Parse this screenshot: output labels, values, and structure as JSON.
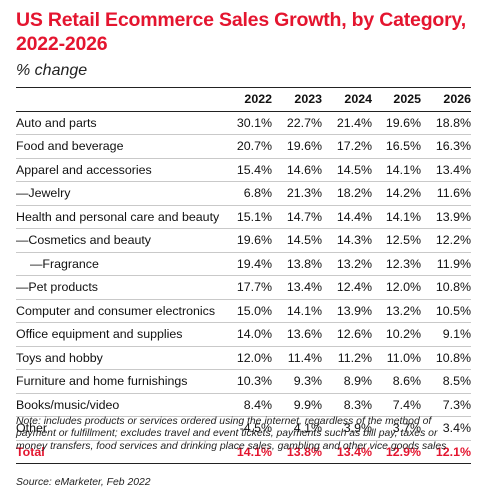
{
  "chart_data": {
    "type": "table",
    "title": "US Retail Ecommerce Sales Growth, by Category, 2022-2026",
    "subtitle": "% change",
    "columns": [
      "2022",
      "2023",
      "2024",
      "2025",
      "2026"
    ],
    "rows": [
      {
        "category": "Auto and parts",
        "values": [
          "30.1%",
          "22.7%",
          "21.4%",
          "19.6%",
          "18.8%"
        ]
      },
      {
        "category": "Food and beverage",
        "values": [
          "20.7%",
          "19.6%",
          "17.2%",
          "16.5%",
          "16.3%"
        ]
      },
      {
        "category": "Apparel and accessories",
        "values": [
          "15.4%",
          "14.6%",
          "14.5%",
          "14.1%",
          "13.4%"
        ]
      },
      {
        "category": "—Jewelry",
        "values": [
          "6.8%",
          "21.3%",
          "18.2%",
          "14.2%",
          "11.6%"
        ]
      },
      {
        "category": "Health and personal care and beauty",
        "values": [
          "15.1%",
          "14.7%",
          "14.4%",
          "14.1%",
          "13.9%"
        ]
      },
      {
        "category": "—Cosmetics and beauty",
        "values": [
          "19.6%",
          "14.5%",
          "14.3%",
          "12.5%",
          "12.2%"
        ]
      },
      {
        "category": "—Fragrance",
        "indent": 1,
        "values": [
          "19.4%",
          "13.8%",
          "13.2%",
          "12.3%",
          "11.9%"
        ]
      },
      {
        "category": "—Pet products",
        "values": [
          "17.7%",
          "13.4%",
          "12.4%",
          "12.0%",
          "10.8%"
        ]
      },
      {
        "category": "Computer and consumer electronics",
        "values": [
          "15.0%",
          "14.1%",
          "13.9%",
          "13.2%",
          "10.5%"
        ]
      },
      {
        "category": "Office equipment and supplies",
        "values": [
          "14.0%",
          "13.6%",
          "12.6%",
          "10.2%",
          "9.1%"
        ]
      },
      {
        "category": "Toys and hobby",
        "values": [
          "12.0%",
          "11.4%",
          "11.2%",
          "11.0%",
          "10.8%"
        ]
      },
      {
        "category": "Furniture and home furnishings",
        "values": [
          "10.3%",
          "9.3%",
          "8.9%",
          "8.6%",
          "8.5%"
        ]
      },
      {
        "category": "Books/music/video",
        "values": [
          "8.4%",
          "9.9%",
          "8.3%",
          "7.4%",
          "7.3%"
        ]
      },
      {
        "category": "Other",
        "values": [
          "-4.5%",
          "4.1%",
          "3.9%",
          "3.7%",
          "3.4%"
        ]
      }
    ],
    "total": {
      "category": "Total",
      "values": [
        "14.1%",
        "13.8%",
        "13.4%",
        "12.9%",
        "12.1%"
      ]
    }
  },
  "note": "Note: includes products or services ordered using the internet, regardless of the method of payment or fulfillment; excludes travel and event tickets, payments such as bill pay, taxes or money transfers, food services and drinking place sales, gambling and other vice goods sales",
  "source": "Source: eMarketer, Feb 2022",
  "colors": {
    "accent": "#e4152f",
    "text": "#111111",
    "rule": "#c9c9c9"
  }
}
